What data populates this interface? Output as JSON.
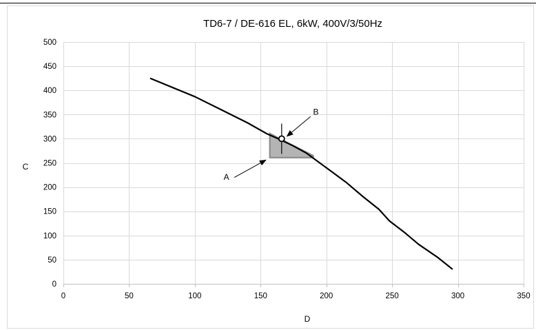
{
  "chart_data": {
    "type": "line",
    "title": "TD6-7 / DE-616 EL, 6kW, 400V/3/50Hz",
    "xlabel": "D",
    "ylabel": "C",
    "xlim": [
      0,
      350
    ],
    "ylim": [
      0,
      500
    ],
    "x_ticks": [
      0,
      50,
      100,
      150,
      200,
      250,
      300,
      350
    ],
    "y_ticks": [
      0,
      50,
      100,
      150,
      200,
      250,
      300,
      350,
      400,
      450,
      500
    ],
    "grid": true,
    "series": [
      {
        "points": [
          [
            66,
            425
          ],
          [
            100,
            387
          ],
          [
            120,
            360
          ],
          [
            140,
            333
          ],
          [
            155,
            310
          ],
          [
            165,
            298
          ],
          [
            175,
            285
          ],
          [
            185,
            270
          ],
          [
            195,
            250
          ],
          [
            205,
            230
          ],
          [
            215,
            210
          ],
          [
            228,
            180
          ],
          [
            240,
            154
          ],
          [
            248,
            130
          ],
          [
            260,
            105
          ],
          [
            270,
            82
          ],
          [
            285,
            54
          ],
          [
            296,
            30
          ]
        ],
        "color": "#000000"
      }
    ],
    "operating_point": {
      "x": 166,
      "y": 300
    },
    "shaded_region": {
      "polygon": [
        [
          157,
          311
        ],
        [
          157,
          261
        ],
        [
          190,
          261
        ],
        [
          190,
          265
        ],
        [
          166,
          298
        ]
      ],
      "fill": "#b4b4b4",
      "stroke": "#8c8c8c"
    },
    "annotations": [
      {
        "label": "A",
        "arrow_tail": [
          130,
          220
        ],
        "arrow_head": [
          154,
          256
        ],
        "text_pos": [
          124,
          215
        ]
      },
      {
        "label": "B",
        "arrow_tail": [
          188,
          346
        ],
        "arrow_head": [
          170,
          305
        ],
        "text_pos": [
          192,
          350
        ]
      }
    ]
  }
}
